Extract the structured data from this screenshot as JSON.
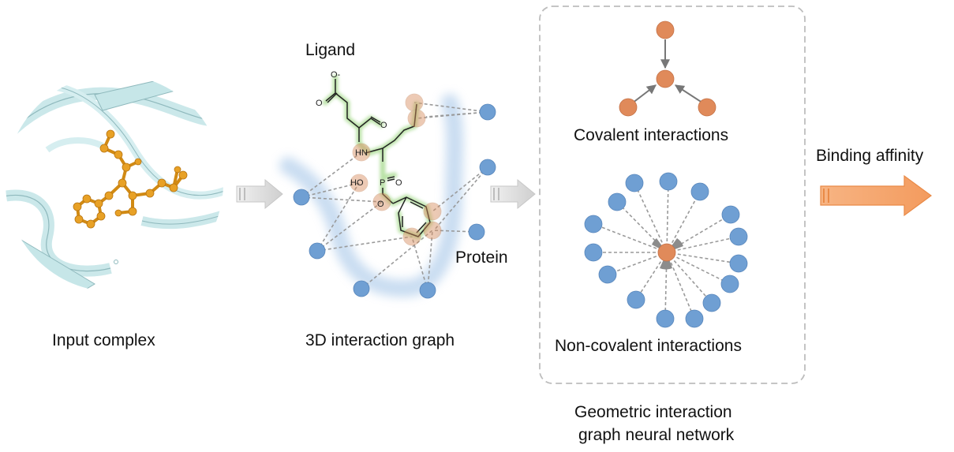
{
  "labels": {
    "input_complex": "Input complex",
    "interaction_graph": "3D interaction graph",
    "ligand": "Ligand",
    "protein": "Protein",
    "covalent": "Covalent interactions",
    "noncovalent": "Non-covalent interactions",
    "network_line1": "Geometric interaction",
    "network_line2": "graph neural network",
    "output": "Binding affinity"
  },
  "chem_atoms": {
    "charge": "O-",
    "o1": "O",
    "o2": "O",
    "nh": "HN",
    "ho": "HO",
    "p": "P",
    "o3": "O",
    "o4": "O"
  },
  "colors": {
    "ligand_orange": "#e8a126",
    "ribbon_teal": "#bfe2e4",
    "protein_blue": "#6f9fd3",
    "ligand_node": "#e08a5a",
    "arrow_gray": "#d9d9d9",
    "output_arrow": "#f4a46d",
    "dashed_box": "#bdbdbd"
  }
}
